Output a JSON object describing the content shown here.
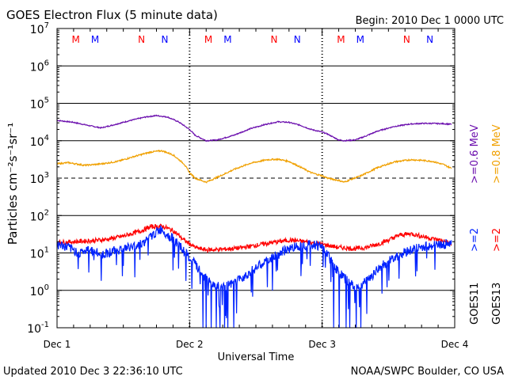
{
  "header": {
    "title": "GOES Electron Flux (5 minute data)",
    "begin": "Begin: 2010 Dec 1 0000 UTC"
  },
  "footer": {
    "updated": "Updated 2010 Dec  3 22:36:10 UTC",
    "source": "NOAA/SWPC Boulder, CO USA"
  },
  "colors": {
    "purple": "#6a0dad",
    "orange": "#f0a000",
    "blue": "#0022ff",
    "red": "#ff0000",
    "mark_red": "#ff0000",
    "mark_blue": "#0000ff"
  },
  "chart_data": {
    "type": "line",
    "title": "GOES Electron Flux (5 minute data)",
    "xlabel": "Universal Time",
    "ylabel": "Particles cm⁻²s⁻¹sr⁻¹",
    "ylim": [
      0.1,
      10000000
    ],
    "yscale": "log",
    "xlim": [
      0,
      72
    ],
    "x_unit": "hours since 2010 Dec 1 0000 UTC",
    "y_ticks": [
      {
        "value": 10000000,
        "base": "10",
        "exp": "7"
      },
      {
        "value": 1000000,
        "base": "10",
        "exp": "6"
      },
      {
        "value": 100000,
        "base": "10",
        "exp": "5"
      },
      {
        "value": 10000,
        "base": "10",
        "exp": "4"
      },
      {
        "value": 1000,
        "base": "10",
        "exp": "3"
      },
      {
        "value": 100,
        "base": "10",
        "exp": "2"
      },
      {
        "value": 10,
        "base": "10",
        "exp": "1"
      },
      {
        "value": 1,
        "base": "10",
        "exp": "0"
      },
      {
        "value": 0.1,
        "base": "10",
        "exp": "-1"
      }
    ],
    "x_ticks": [
      {
        "hour": 0,
        "label": "Dec 1"
      },
      {
        "hour": 24,
        "label": "Dec 2"
      },
      {
        "hour": 48,
        "label": "Dec 3"
      },
      {
        "hour": 72,
        "label": "Dec 4"
      }
    ],
    "gridlines_y": [
      1000000,
      100000,
      10000,
      100,
      10,
      1
    ],
    "dashed_lines_y": [
      1000
    ],
    "markers": [
      {
        "letter": "M",
        "hour": 3.4,
        "color": "red"
      },
      {
        "letter": "M",
        "hour": 6.9,
        "color": "blue"
      },
      {
        "letter": "N",
        "hour": 15.3,
        "color": "red"
      },
      {
        "letter": "N",
        "hour": 19.5,
        "color": "blue"
      },
      {
        "letter": "M",
        "hour": 27.4,
        "color": "red"
      },
      {
        "letter": "M",
        "hour": 30.9,
        "color": "blue"
      },
      {
        "letter": "N",
        "hour": 39.3,
        "color": "red"
      },
      {
        "letter": "N",
        "hour": 43.5,
        "color": "blue"
      },
      {
        "letter": "M",
        "hour": 51.4,
        "color": "red"
      },
      {
        "letter": "M",
        "hour": 54.9,
        "color": "blue"
      },
      {
        "letter": "N",
        "hour": 63.3,
        "color": "red"
      },
      {
        "letter": "N",
        "hour": 67.5,
        "color": "blue"
      }
    ],
    "legend": [
      {
        "label": ">=0.6 MeV",
        "color": "purple"
      },
      {
        "label": ">=0.8 MeV",
        "color": "orange"
      },
      {
        "label": ">=2",
        "color": "blue"
      },
      {
        "label": ">=2",
        "color": "red"
      },
      {
        "label": "GOES11",
        "color": "black"
      },
      {
        "label": "GOES13",
        "color": "black"
      }
    ],
    "series": [
      {
        "name": ">=0.6 MeV",
        "color": "purple",
        "x": [
          0,
          3,
          6,
          8,
          10,
          13,
          16,
          18,
          20,
          22,
          24,
          25,
          27,
          29,
          32,
          35,
          38,
          40,
          42,
          44,
          46,
          48,
          49,
          50,
          51,
          52,
          54,
          56,
          58,
          61,
          64,
          66,
          68,
          70,
          71.5
        ],
        "y": [
          35000,
          31000,
          25000,
          22000,
          26000,
          34000,
          43000,
          47000,
          43000,
          32000,
          20000,
          14000,
          10000,
          10500,
          14000,
          21000,
          28000,
          32000,
          31000,
          26000,
          20000,
          17000,
          15000,
          12500,
          10500,
          10000,
          10500,
          13500,
          18000,
          24000,
          28000,
          29000,
          29000,
          28500,
          27500
        ]
      },
      {
        "name": ">=0.8 MeV",
        "color": "orange",
        "x": [
          0,
          2,
          5,
          8,
          11,
          14,
          17,
          19,
          21,
          23,
          24,
          25,
          26,
          27,
          29,
          32,
          35,
          38,
          40,
          42,
          44,
          46,
          48,
          49,
          50,
          51,
          52,
          53,
          55,
          58,
          61,
          64,
          66,
          68,
          70,
          71.5
        ],
        "y": [
          2400,
          2600,
          2200,
          2400,
          2800,
          3800,
          5000,
          5400,
          4200,
          2400,
          1400,
          1000,
          880,
          780,
          1050,
          1700,
          2500,
          3100,
          3200,
          2800,
          2000,
          1400,
          1150,
          1000,
          930,
          870,
          780,
          900,
          1150,
          1900,
          2700,
          3100,
          3000,
          2800,
          2300,
          1800
        ]
      },
      {
        "name": ">=2 GOES13",
        "color": "red",
        "x": [
          0,
          3,
          6,
          9,
          12,
          15,
          17,
          19,
          21,
          23,
          25,
          27,
          30,
          33,
          36,
          39,
          42,
          45,
          48,
          51,
          54,
          56,
          58,
          60,
          62,
          64,
          66,
          68,
          70,
          71.5
        ],
        "y": [
          19,
          20,
          21,
          23,
          28,
          38,
          50,
          52,
          40,
          22,
          14,
          12,
          12.5,
          13.5,
          16,
          19,
          22,
          20,
          17,
          14,
          13,
          14,
          17,
          22,
          30,
          33,
          28,
          24,
          21,
          17
        ]
      },
      {
        "name": ">=2 GOES11",
        "color": "blue",
        "x": [
          0,
          2,
          4,
          6,
          8,
          10,
          12,
          14,
          16,
          18,
          19,
          20,
          21,
          22,
          23,
          24,
          25,
          26,
          27,
          28,
          30,
          32,
          34,
          36,
          38,
          40,
          42,
          44,
          46,
          48,
          49,
          50,
          51,
          52,
          53,
          54,
          55,
          56,
          57,
          58,
          60,
          62,
          64,
          66,
          68,
          70,
          71.5
        ],
        "y": [
          17,
          14,
          10,
          12,
          9,
          11,
          13,
          15,
          20,
          36,
          44,
          30,
          24,
          16,
          11,
          7,
          5,
          3,
          2,
          1.5,
          1.2,
          1.5,
          2.5,
          4,
          6,
          9,
          13,
          16,
          17,
          15,
          9,
          5,
          3,
          2.2,
          1.5,
          1.2,
          1.3,
          1.8,
          2.5,
          3.5,
          6,
          9,
          12,
          14,
          16,
          17,
          19
        ],
        "dropouts_to": 0.1,
        "dropout_hours": [
          26.4,
          27.0,
          27.9,
          28.8,
          29.5,
          30.3,
          30.9,
          32.0,
          50.1,
          51.1,
          52.3,
          53.0,
          54.2,
          55.0
        ]
      }
    ]
  }
}
